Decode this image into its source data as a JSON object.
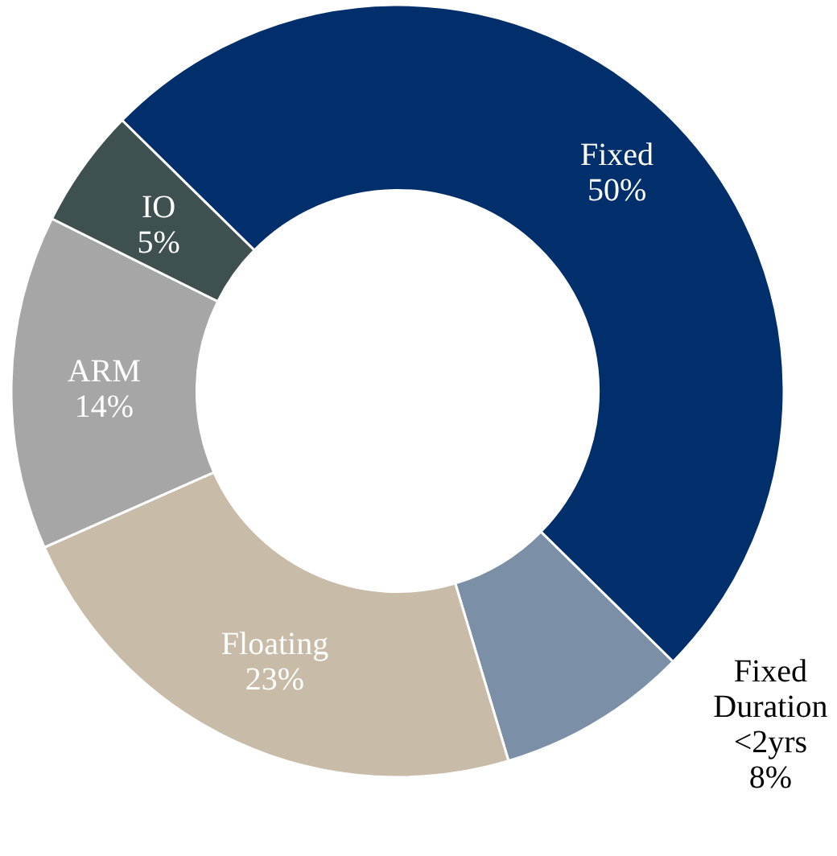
{
  "chart_data": {
    "type": "donut",
    "categories": [
      "Fixed",
      "Fixed Duration <2yrs",
      "Floating",
      "ARM",
      "IO"
    ],
    "values": [
      50,
      8,
      23,
      14,
      5
    ],
    "value_labels": [
      "50%",
      "8%",
      "23%",
      "14%",
      "5%"
    ],
    "colors": [
      "#002f6c",
      "#7b8fa6",
      "#c8bba7",
      "#a6a6a6",
      "#3e5050"
    ],
    "legend": false
  }
}
